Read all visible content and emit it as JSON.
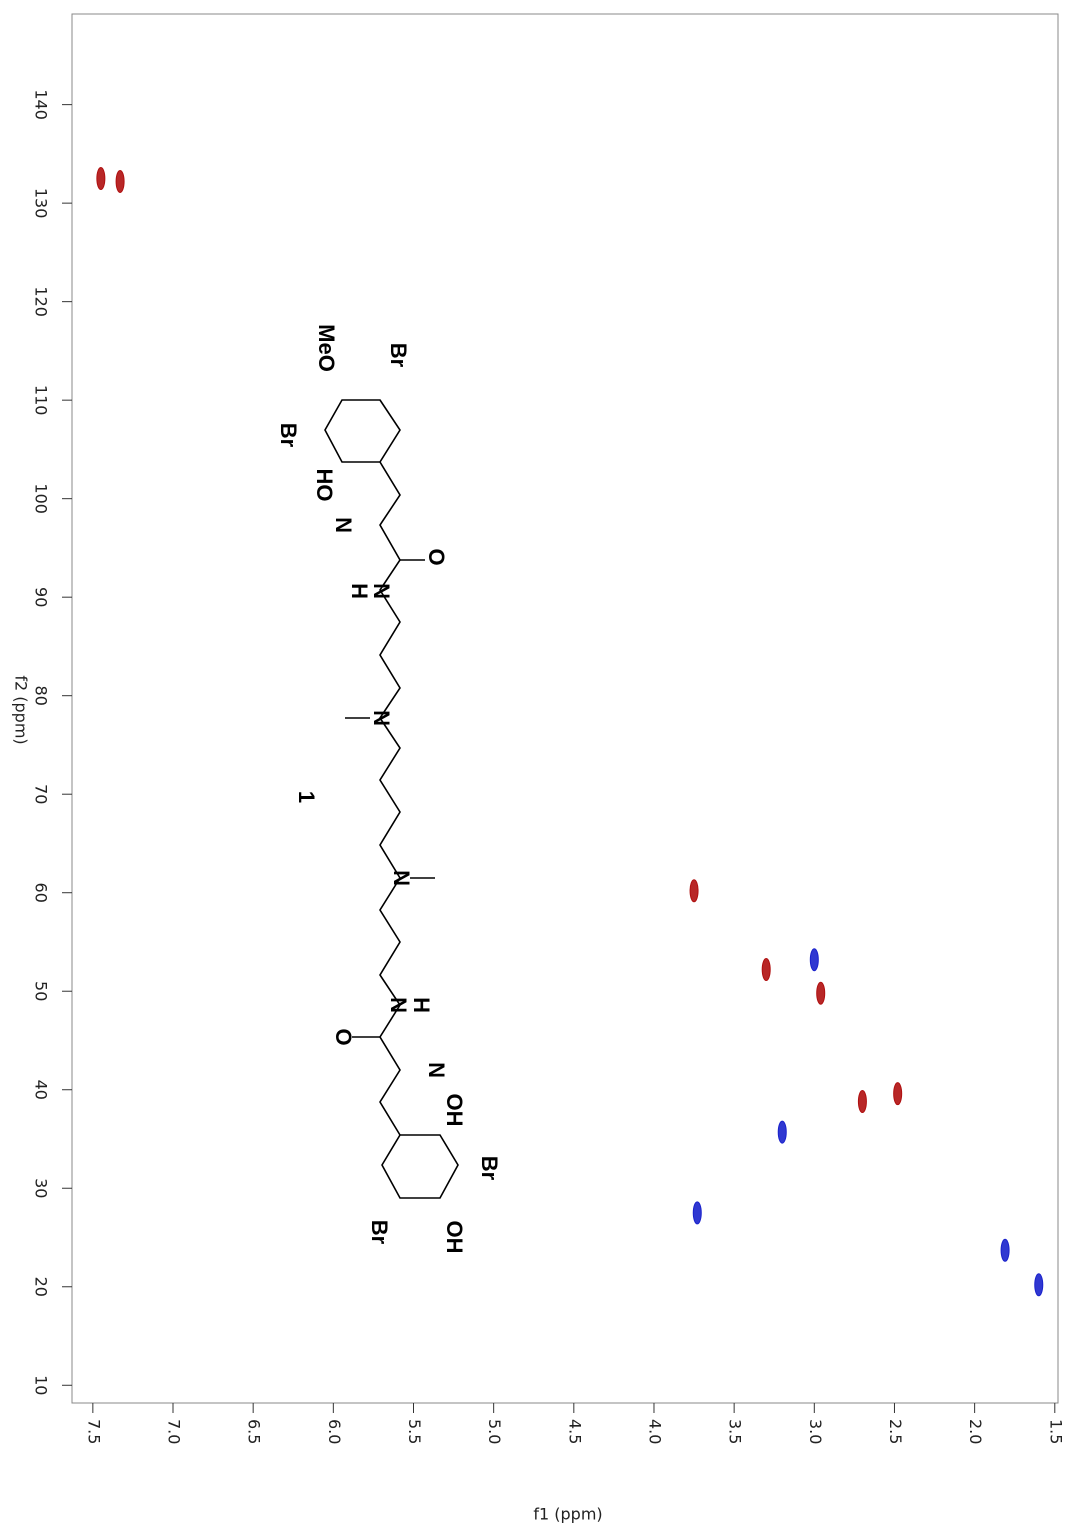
{
  "chart_data": {
    "type": "scatter",
    "xlabel": "f1 (ppm)",
    "ylabel": "f2 (ppm)",
    "xlim": [
      7.63,
      1.48
    ],
    "ylim": [
      8.2,
      149.2
    ],
    "xticks": [
      7.5,
      {
        "value": 7,
        "label": "7.0"
      },
      6.5,
      {
        "value": 6,
        "label": "6.0"
      },
      5.5,
      {
        "value": 5,
        "label": "5.0"
      },
      4.5,
      {
        "value": 4,
        "label": "4.0"
      },
      3.5,
      {
        "value": 3,
        "label": "3.0"
      },
      2.5,
      {
        "value": 2,
        "label": "2.0"
      },
      1.5
    ],
    "yticks": [
      10,
      20,
      30,
      40,
      50,
      60,
      70,
      80,
      90,
      100,
      110,
      120,
      130,
      140
    ],
    "series": [
      {
        "color": "#b01010",
        "x": [
          7.45,
          7.33,
          3.75,
          3.3,
          2.96,
          2.7,
          2.48
        ],
        "values": [
          132.5,
          132.2,
          60.2,
          52.2,
          49.8,
          38.8,
          39.6
        ]
      },
      {
        "color": "#1a22cc",
        "x": [
          3.0,
          3.2,
          3.73,
          1.81,
          1.6
        ],
        "values": [
          53.2,
          35.7,
          27.5,
          23.7,
          20.2
        ]
      }
    ],
    "structure_labels": [
      "MeO",
      "Br",
      "Br",
      "HO",
      "N",
      "O",
      "N",
      "H",
      "N",
      "1",
      "N",
      "N",
      "H",
      "O",
      "N",
      "OH",
      "Br",
      "Br",
      "OH"
    ]
  }
}
